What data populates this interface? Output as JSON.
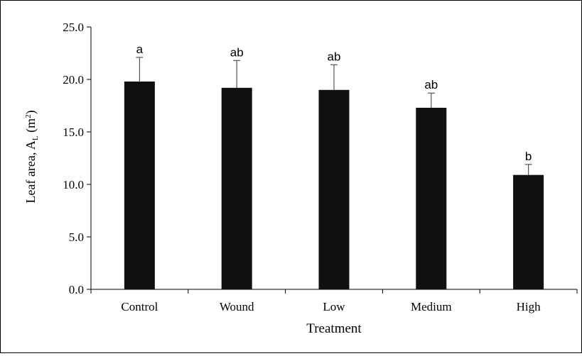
{
  "chart_data": {
    "type": "bar",
    "title": "",
    "xlabel": "Treatment",
    "ylabel_main": "Leaf area, A",
    "ylabel_sub": "L",
    "ylabel_unit_open": " (m",
    "ylabel_sup": "2",
    "ylabel_unit_close": ")",
    "categories": [
      "Control",
      "Wound",
      "Low",
      "Medium",
      "High"
    ],
    "values": [
      19.8,
      19.2,
      19.0,
      17.3,
      10.9
    ],
    "errors": [
      2.3,
      2.6,
      2.4,
      1.4,
      1.0
    ],
    "labels": [
      "a",
      "ab",
      "ab",
      "ab",
      "b"
    ],
    "ylim": [
      0,
      25
    ],
    "yticks": [
      "0.0",
      "5.0",
      "10.0",
      "15.0",
      "20.0",
      "25.0"
    ],
    "bar_color": "#111111",
    "grid": false,
    "legend": "none"
  }
}
